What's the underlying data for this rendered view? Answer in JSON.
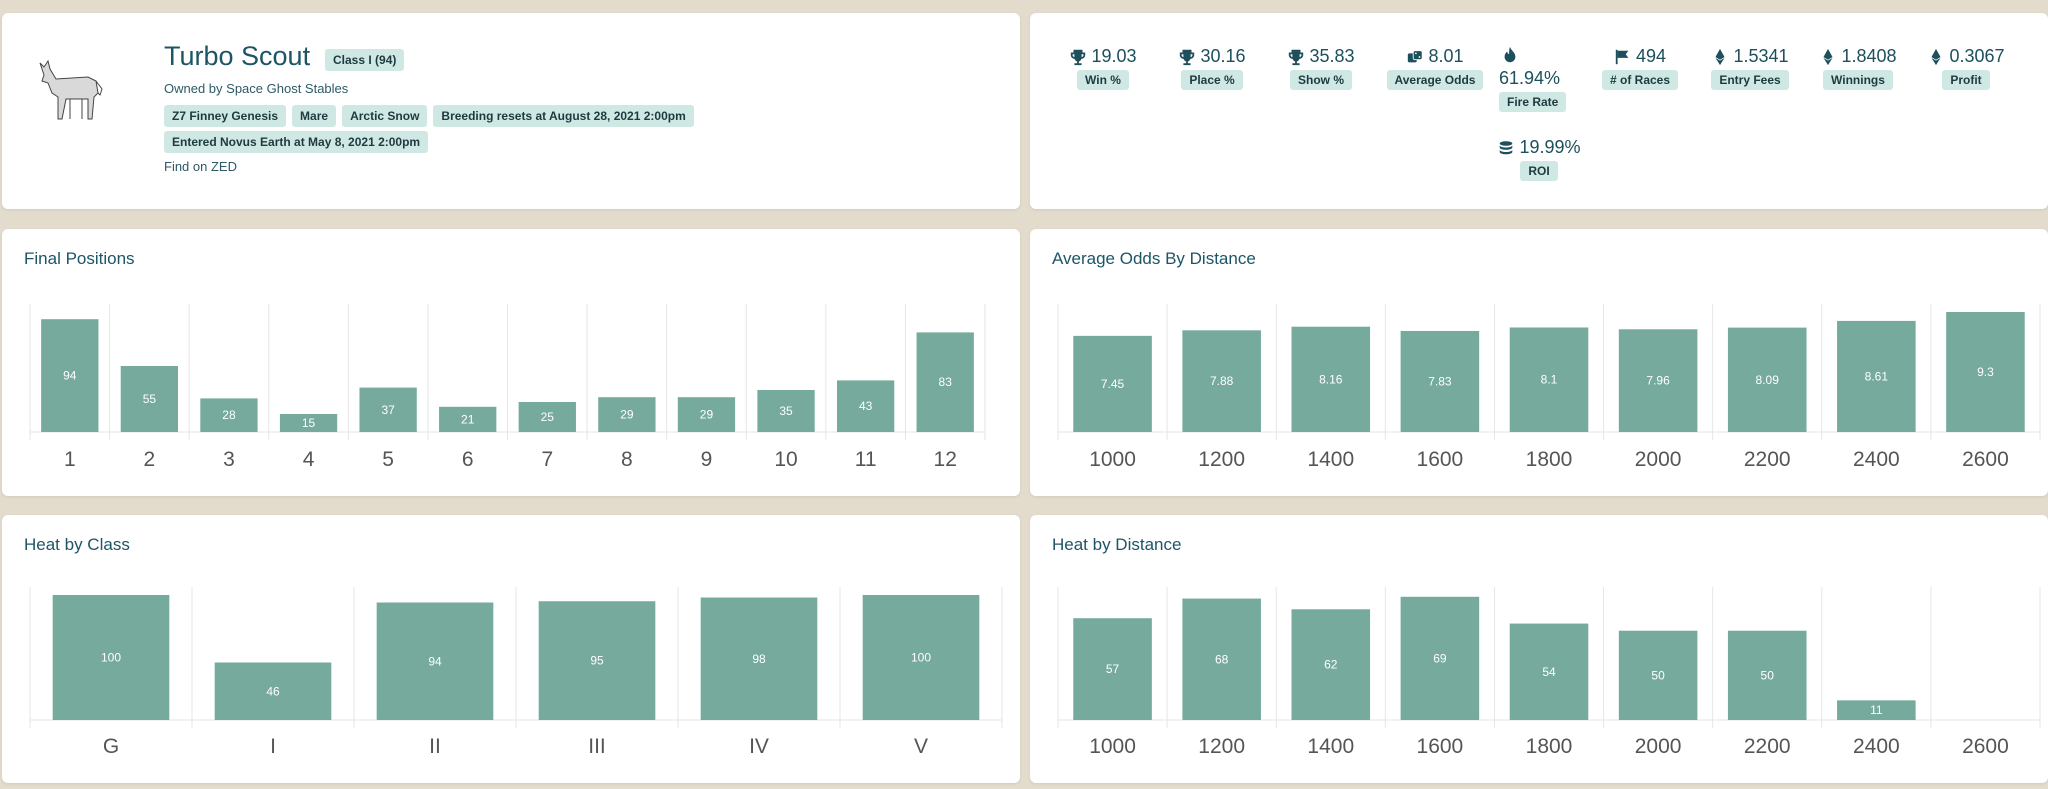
{
  "profile": {
    "horse_name": "Turbo Scout",
    "class_badge": "Class I (94)",
    "owner": "Owned by Space Ghost Stables",
    "tags_row1": [
      "Z7 Finney Genesis",
      "Mare",
      "Arctic Snow",
      "Breeding resets at August 28, 2021 2:00pm"
    ],
    "tags_row2": [
      "Entered Novus Earth at May 8, 2021 2:00pm"
    ],
    "find_link": "Find on ZED"
  },
  "stats": [
    {
      "icon": "trophy-icon",
      "value": "19.03",
      "label": "Win %"
    },
    {
      "icon": "trophy-icon",
      "value": "30.16",
      "label": "Place %"
    },
    {
      "icon": "trophy-icon",
      "value": "35.83",
      "label": "Show %"
    },
    {
      "icon": "dice-icon",
      "value": "8.01",
      "label": "Average Odds"
    },
    {
      "icon": "fire-icon",
      "value": "61.94%",
      "label": "Fire Rate"
    },
    {
      "icon": "flag-icon",
      "value": "494",
      "label": "# of Races"
    },
    {
      "icon": "ethereum-icon",
      "value": "1.5341",
      "label": "Entry Fees"
    },
    {
      "icon": "ethereum-icon",
      "value": "1.8408",
      "label": "Winnings"
    },
    {
      "icon": "ethereum-icon",
      "value": "0.3067",
      "label": "Profit"
    },
    {
      "icon": "coins-icon",
      "value": "19.99%",
      "label": "ROI"
    }
  ],
  "colors": {
    "bar": "#75aa9c",
    "badge_bg": "#cfe8e4",
    "background": "#e3dccd"
  },
  "chart_data": [
    {
      "id": "final",
      "type": "bar",
      "title": "Final Positions",
      "categories": [
        "1",
        "2",
        "3",
        "4",
        "5",
        "6",
        "7",
        "8",
        "9",
        "10",
        "11",
        "12"
      ],
      "values": [
        94,
        55,
        28,
        15,
        37,
        21,
        25,
        29,
        29,
        35,
        43,
        83
      ],
      "ylim": [
        0,
        100
      ]
    },
    {
      "id": "odds",
      "type": "bar",
      "title": "Average Odds By Distance",
      "categories": [
        "1000",
        "1200",
        "1400",
        "1600",
        "1800",
        "2000",
        "2200",
        "2400",
        "2600"
      ],
      "values": [
        7.45,
        7.88,
        8.16,
        7.83,
        8.1,
        7.96,
        8.09,
        8.61,
        9.3
      ],
      "ylim": [
        0,
        9.3
      ]
    },
    {
      "id": "hclass",
      "type": "bar",
      "title": "Heat by Class",
      "categories": [
        "G",
        "I",
        "II",
        "III",
        "IV",
        "V"
      ],
      "values": [
        100,
        46,
        94,
        95,
        98,
        100
      ],
      "ylim": [
        0,
        100
      ]
    },
    {
      "id": "hdist",
      "type": "bar",
      "title": "Heat by Distance",
      "categories": [
        "1000",
        "1200",
        "1400",
        "1600",
        "1800",
        "2000",
        "2200",
        "2400",
        "2600"
      ],
      "values": [
        57,
        68,
        62,
        69,
        54,
        50,
        50,
        11,
        null
      ],
      "ylim": [
        0,
        70
      ]
    }
  ]
}
